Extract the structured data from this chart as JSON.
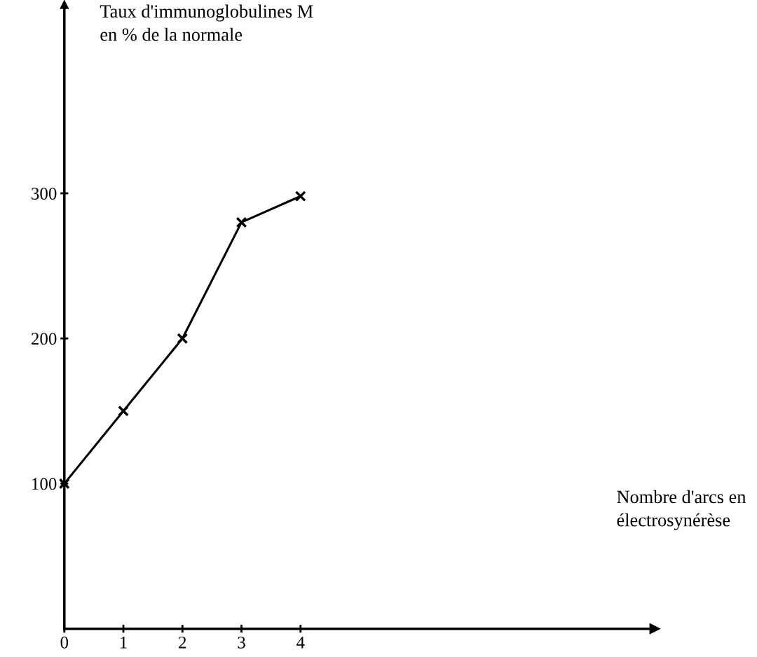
{
  "chart_data": {
    "type": "line",
    "ylabel": "Taux d'immunoglobulines M\nen % de la normale",
    "xlabel": "Nombre d'arcs en\nélectrosynérèse",
    "x": [
      0,
      1,
      2,
      3,
      4
    ],
    "series": [
      {
        "color": "#000000",
        "values": [
          100,
          150,
          200,
          280,
          298
        ]
      }
    ],
    "xlim": [
      0,
      10
    ],
    "ylim": [
      0,
      430
    ],
    "xticks": [
      0,
      1,
      2,
      3,
      4
    ],
    "yticks": [
      100,
      200,
      300
    ],
    "marker": "cross",
    "line_style": "solid",
    "grid": false
  }
}
